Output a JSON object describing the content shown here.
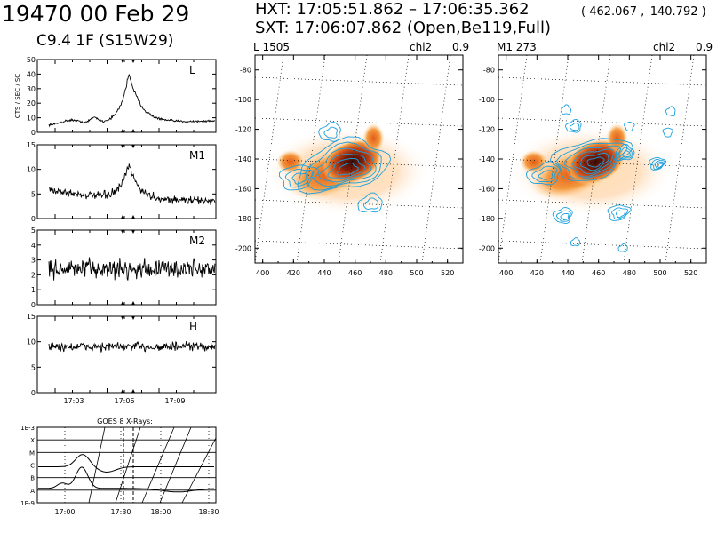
{
  "header": {
    "event": "19470   00 Feb 29",
    "flare": "C9.4     1F (S15W29)",
    "hxt": "HXT: 17:05:51.862 – 17:06:35.362",
    "coord": "( 462.067 ,–140.792 )",
    "sxt": "SXT: 17:06:07.862 (Open,Be119,Full)"
  },
  "chart_data": [
    {
      "type": "line",
      "title": "L",
      "ylabel": "CTS / SEC / SC",
      "ylim": [
        0,
        50
      ],
      "yticks": [
        "0",
        "10",
        "20",
        "30",
        "40",
        "50"
      ],
      "x_range_min": [
        -240,
        240
      ],
      "baseline": 3.0,
      "peak": 40,
      "noise": 0.6,
      "mode": "L"
    },
    {
      "type": "line",
      "title": "M1",
      "ylim": [
        0,
        15
      ],
      "yticks": [
        "0",
        "5",
        "10",
        "15"
      ],
      "baseline": 3.5,
      "peak": 11,
      "noise": 0.7,
      "mode": "M1"
    },
    {
      "type": "line",
      "title": "M2",
      "ylim": [
        0,
        5
      ],
      "yticks": [
        "0",
        "1",
        "2",
        "3",
        "4",
        "5"
      ],
      "baseline": 2.4,
      "noise": 0.55,
      "mode": "flat"
    },
    {
      "type": "line",
      "title": "H",
      "ylim": [
        0,
        15
      ],
      "yticks": [
        "0",
        "5",
        "10",
        "15"
      ],
      "baseline": 9.0,
      "noise": 0.8,
      "mode": "flat",
      "xticks": [
        "17:03",
        "17:06",
        "17:09"
      ]
    },
    {
      "type": "line",
      "title": "GOES 8 X-Rays:",
      "yticks": [
        "1E-3",
        "X",
        "M",
        "C",
        "B",
        "A",
        "1E-9"
      ],
      "xticks": [
        "17:00",
        "17:30",
        "18:00",
        "18:30"
      ]
    },
    {
      "type": "heatmap",
      "title": "L   1505",
      "chi2_label": "chi2",
      "chi2_value": "0.9",
      "xlabel": "",
      "ylabel": "",
      "xlim": [
        395,
        530
      ],
      "ylim": [
        -210,
        -70
      ],
      "xticks": [
        "400",
        "420",
        "440",
        "460",
        "480",
        "500",
        "520"
      ],
      "yticks": [
        "-80",
        "-100",
        "-120",
        "-140",
        "-160",
        "-180",
        "-200"
      ],
      "contours": [
        {
          "cx": 452,
          "cy": -145,
          "rx": 30,
          "ry": 16,
          "levels": 6
        },
        {
          "cx": 423,
          "cy": -152,
          "rx": 12,
          "ry": 8,
          "levels": 3
        },
        {
          "cx": 444,
          "cy": -122,
          "rx": 7,
          "ry": 6,
          "levels": 2
        },
        {
          "cx": 470,
          "cy": -170,
          "rx": 8,
          "ry": 6,
          "levels": 2
        }
      ]
    },
    {
      "type": "heatmap",
      "title": "M1   273",
      "chi2_label": "chi2",
      "chi2_value": "0.9",
      "xlim": [
        395,
        530
      ],
      "ylim": [
        -210,
        -70
      ],
      "xticks": [
        "400",
        "420",
        "440",
        "460",
        "480",
        "500",
        "520"
      ],
      "yticks": [
        "-80",
        "-100",
        "-120",
        "-140",
        "-160",
        "-180",
        "-200"
      ],
      "contours": [
        {
          "cx": 455,
          "cy": -140,
          "rx": 25,
          "ry": 13,
          "levels": 6
        },
        {
          "cx": 425,
          "cy": -150,
          "rx": 11,
          "ry": 7,
          "levels": 3
        },
        {
          "cx": 477,
          "cy": -136,
          "rx": 6,
          "ry": 5,
          "levels": 3
        },
        {
          "cx": 437,
          "cy": -178,
          "rx": 6,
          "ry": 5,
          "levels": 3
        },
        {
          "cx": 473,
          "cy": -176,
          "rx": 7,
          "ry": 5,
          "levels": 3
        },
        {
          "cx": 498,
          "cy": -143,
          "rx": 5,
          "ry": 4,
          "levels": 4
        },
        {
          "cx": 444,
          "cy": -118,
          "rx": 5,
          "ry": 4,
          "levels": 2
        },
        {
          "cx": 439,
          "cy": -107,
          "rx": 3,
          "ry": 3,
          "levels": 1
        },
        {
          "cx": 445,
          "cy": -196,
          "rx": 3,
          "ry": 2.5,
          "levels": 1
        },
        {
          "cx": 476,
          "cy": -200,
          "rx": 3,
          "ry": 2.5,
          "levels": 1
        },
        {
          "cx": 480,
          "cy": -118,
          "rx": 3,
          "ry": 3,
          "levels": 1
        },
        {
          "cx": 507,
          "cy": -108,
          "rx": 3,
          "ry": 3,
          "levels": 1
        },
        {
          "cx": 505,
          "cy": -122,
          "rx": 3,
          "ry": 3,
          "levels": 1
        }
      ]
    }
  ],
  "colors": {
    "contour": "#1aa0e0",
    "axis": "#000000"
  }
}
